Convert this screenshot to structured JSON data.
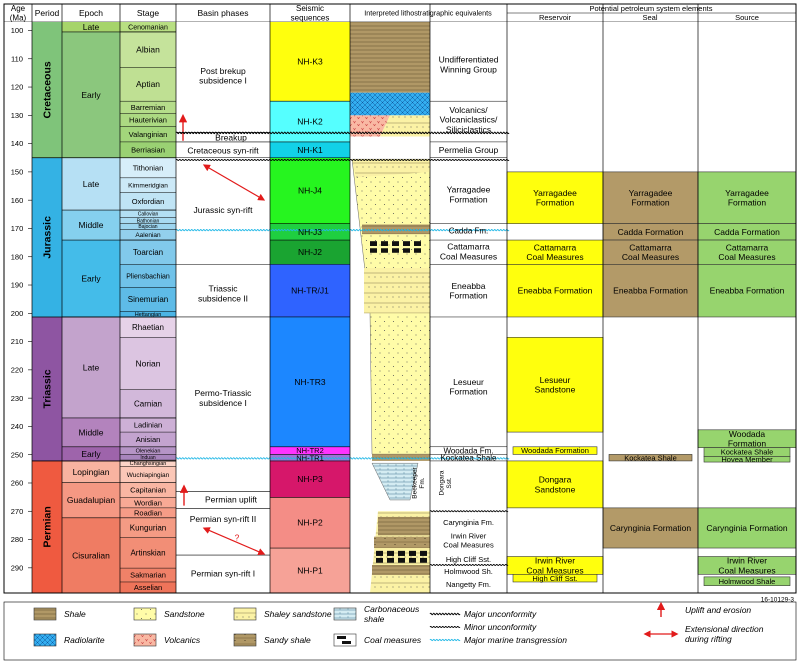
{
  "header": {
    "age": "Age\n(Ma)",
    "period": "Period",
    "epoch": "Epoch",
    "stage": "Stage",
    "basin": "Basin phases",
    "seismic": "Seismic\nsequences",
    "litho": "Interpreted lithostratigraphic equivalents",
    "pse": "Potential petroleum system elements",
    "reservoir": "Reservoir",
    "seal": "Seal",
    "source": "Source"
  },
  "age_axis": {
    "ticks": [
      100,
      110,
      120,
      130,
      140,
      150,
      160,
      170,
      180,
      190,
      200,
      210,
      220,
      230,
      240,
      250,
      260,
      270,
      280,
      290
    ]
  },
  "periods": [
    {
      "name": "Cretaceous",
      "top": 97,
      "base": 145,
      "color": "#7fc47a"
    },
    {
      "name": "Jurassic",
      "top": 145,
      "base": 201.3,
      "color": "#34b2e4"
    },
    {
      "name": "Triassic",
      "top": 201.3,
      "base": 252.2,
      "color": "#8e55a2"
    },
    {
      "name": "Permian",
      "top": 252.2,
      "base": 298.9,
      "color": "#ef5a40"
    }
  ],
  "epochs": [
    {
      "name": "Late",
      "top": 97,
      "base": 100.5,
      "color": "#a6d46a"
    },
    {
      "name": "Early",
      "top": 100.5,
      "base": 145,
      "color": "#8bc77d"
    },
    {
      "name": "Late",
      "top": 145,
      "base": 163.5,
      "color": "#b6e0f4"
    },
    {
      "name": "Middle",
      "top": 163.5,
      "base": 174.1,
      "color": "#85d0ee"
    },
    {
      "name": "Early",
      "top": 174.1,
      "base": 201.3,
      "color": "#44bce9"
    },
    {
      "name": "Late",
      "top": 201.3,
      "base": 237,
      "color": "#c3a3cc"
    },
    {
      "name": "Middle",
      "top": 237,
      "base": 247.2,
      "color": "#b383bd"
    },
    {
      "name": "Early",
      "top": 247.2,
      "base": 252.2,
      "color": "#9e64ab"
    },
    {
      "name": "Lopingian",
      "top": 252.2,
      "base": 259.9,
      "color": "#f8b3a0"
    },
    {
      "name": "Guadalupian",
      "top": 259.9,
      "base": 272.3,
      "color": "#f59883"
    },
    {
      "name": "Cisuralian",
      "top": 272.3,
      "base": 298.9,
      "color": "#ef7c63"
    }
  ],
  "stages": [
    {
      "name": "Cenomanian",
      "top": 97,
      "base": 100.5,
      "color": "#b8df82",
      "size": 7
    },
    {
      "name": "Albian",
      "top": 100.5,
      "base": 113,
      "color": "#c5e39b",
      "size": 8.5
    },
    {
      "name": "Aptian",
      "top": 113,
      "base": 125,
      "color": "#bfe093",
      "size": 8.5
    },
    {
      "name": "Barremian",
      "top": 125,
      "base": 129.4,
      "color": "#b5dd8a",
      "size": 7.5
    },
    {
      "name": "Hauterivian",
      "top": 129.4,
      "base": 133.9,
      "color": "#acd982",
      "size": 7.5
    },
    {
      "name": "Valanginian",
      "top": 133.9,
      "base": 139.4,
      "color": "#a3d57b",
      "size": 7.5
    },
    {
      "name": "Berriasian",
      "top": 139.4,
      "base": 145,
      "color": "#9ad173",
      "size": 7.5
    },
    {
      "name": "Tithonian",
      "top": 145,
      "base": 152.1,
      "color": "#d7eef9",
      "size": 7.5
    },
    {
      "name": "Kimmeridgian",
      "top": 152.1,
      "base": 157.3,
      "color": "#cce9f7",
      "size": 6.5
    },
    {
      "name": "Oxfordian",
      "top": 157.3,
      "base": 163.5,
      "color": "#c0e4f5",
      "size": 7.5
    },
    {
      "name": "Callovian",
      "top": 163.5,
      "base": 166.1,
      "color": "#b3dff3",
      "size": 5
    },
    {
      "name": "Bathonian",
      "top": 166.1,
      "base": 168.3,
      "color": "#a8daf1",
      "size": 5
    },
    {
      "name": "Bajocian",
      "top": 168.3,
      "base": 170.3,
      "color": "#9dd5ef",
      "size": 5
    },
    {
      "name": "Aalenian",
      "top": 170.3,
      "base": 174.1,
      "color": "#93d0ed",
      "size": 6.5
    },
    {
      "name": "Toarcian",
      "top": 174.1,
      "base": 182.7,
      "color": "#81c9eb",
      "size": 8
    },
    {
      "name": "Pliensbachian",
      "top": 182.7,
      "base": 190.8,
      "color": "#70c2e9",
      "size": 7
    },
    {
      "name": "Sinemurian",
      "top": 190.8,
      "base": 199.3,
      "color": "#5ebbe7",
      "size": 8
    },
    {
      "name": "Hettangian",
      "top": 199.3,
      "base": 201.3,
      "color": "#4cb4e5",
      "size": 5.5
    },
    {
      "name": "Rhaetian",
      "top": 201.3,
      "base": 208.5,
      "color": "#e6d2e8",
      "size": 8
    },
    {
      "name": "Norian",
      "top": 208.5,
      "base": 227,
      "color": "#dcc5e1",
      "size": 8.5
    },
    {
      "name": "Carnian",
      "top": 227,
      "base": 237,
      "color": "#d2b8da",
      "size": 8
    },
    {
      "name": "Ladinian",
      "top": 237,
      "base": 242,
      "color": "#cdb0d6",
      "size": 7.5
    },
    {
      "name": "Anisian",
      "top": 242,
      "base": 247.2,
      "color": "#c3a3cf",
      "size": 7.5
    },
    {
      "name": "Olenekian",
      "top": 247.2,
      "base": 249.9,
      "color": "#b594c6",
      "size": 5.5
    },
    {
      "name": "Induan",
      "top": 249.9,
      "base": 251.9,
      "color": "#a885bd",
      "size": 5
    },
    {
      "name": "Changhsingian",
      "top": 251.9,
      "base": 254.1,
      "color": "#fcd4c7",
      "size": 5.5
    },
    {
      "name": "Wuchiapingian",
      "top": 254.1,
      "base": 259.9,
      "color": "#fbc7b7",
      "size": 6.5
    },
    {
      "name": "Capitanian",
      "top": 259.9,
      "base": 265.1,
      "color": "#f9b6a3",
      "size": 7.5
    },
    {
      "name": "Wordian",
      "top": 265.1,
      "base": 268.8,
      "color": "#f8a995",
      "size": 7.5
    },
    {
      "name": "Roadian",
      "top": 268.8,
      "base": 272.3,
      "color": "#f69c87",
      "size": 7.5
    },
    {
      "name": "Kungurian",
      "top": 272.3,
      "base": 279.3,
      "color": "#f49b84",
      "size": 8
    },
    {
      "name": "Artinskian",
      "top": 279.3,
      "base": 290.1,
      "color": "#f28e76",
      "size": 8
    },
    {
      "name": "Sakmarian",
      "top": 290.1,
      "base": 295,
      "color": "#f08168",
      "size": 7.5
    },
    {
      "name": "Asselian",
      "top": 295,
      "base": 298.9,
      "color": "#ee745a",
      "size": 7.5
    }
  ],
  "basin_phases": [
    {
      "label": "Post brekup\nsubsidence I",
      "top": 97,
      "base": 136,
      "y": 116
    },
    {
      "label": "Breakup",
      "top": 136,
      "base": 139.4,
      "y": 137.9
    },
    {
      "label": "Cretaceous syn-rift",
      "top": 139.4,
      "base": 145,
      "y": 142.4
    },
    {
      "label": "Jurassic syn-rift",
      "top": 145,
      "base": 182.7,
      "y": 163.5
    },
    {
      "label": "Triassic\nsubsidence II",
      "top": 182.7,
      "base": 201.3,
      "y": 193
    },
    {
      "label": "Permo-Triassic\nsubsidence I",
      "top": 201.3,
      "base": 263,
      "y": 230
    },
    {
      "label": "Permian uplift",
      "top": 263,
      "base": 269,
      "y": 265.8
    },
    {
      "label": "Permian syn-rift II",
      "top": 269,
      "base": 285.5,
      "y": 272.8
    },
    {
      "label": "Permian syn-rift I",
      "top": 285.5,
      "base": 298.9,
      "y": 292
    }
  ],
  "basin_question": "?",
  "seismic": [
    {
      "name": "NH-K3",
      "top": 97,
      "base": 125,
      "color": "#ffff0d"
    },
    {
      "name": "NH-K2",
      "top": 125,
      "base": 139.4,
      "color": "#55ffff"
    },
    {
      "name": "NH-K1",
      "top": 139.4,
      "base": 145,
      "color": "#12d1e8"
    },
    {
      "name": "NH-J4",
      "top": 145,
      "base": 168.3,
      "color": "#26f51f"
    },
    {
      "name": "NH-J3",
      "top": 168.3,
      "base": 174.1,
      "color": "#1fcf40"
    },
    {
      "name": "NH-J2",
      "top": 174.1,
      "base": 182.7,
      "color": "#1aa431"
    },
    {
      "name": "NH-TR/J1",
      "top": 182.7,
      "base": 201.3,
      "color": "#2f63ff"
    },
    {
      "name": "NH-TR3",
      "top": 201.3,
      "base": 247.2,
      "color": "#1c87ff"
    },
    {
      "name": "NH-TR2",
      "top": 247.2,
      "base": 249.9,
      "color": "#ff33ff"
    },
    {
      "name": "NH-TR1",
      "top": 249.9,
      "base": 252.2,
      "color": "#9c74d9"
    },
    {
      "name": "NH-P3",
      "top": 252.2,
      "base": 265.1,
      "color": "#d6176a"
    },
    {
      "name": "NH-P2",
      "top": 265.1,
      "base": 283,
      "color": "#f48d86"
    },
    {
      "name": "NH-P1",
      "top": 283,
      "base": 298.9,
      "color": "#f6a297"
    }
  ],
  "litho_names": [
    {
      "label": "Undifferentiated\nWinning Group",
      "y": 112
    },
    {
      "label": "Volcanics/\nVolcaniclastics/\nSiliciclastics",
      "y": 131.5
    },
    {
      "label": "Permelia Group",
      "y": 142.3
    },
    {
      "label": "Yarragadee\nFormation",
      "y": 158
    },
    {
      "label": "Cadda Fm.",
      "y": 170.8
    },
    {
      "label": "Cattamarra\nCoal Measures",
      "y": 178.2
    },
    {
      "label": "Eneabba\nFormation",
      "y": 192
    },
    {
      "label": "Lesueur\nFormation",
      "y": 226
    },
    {
      "label": "Woodada Fm.",
      "y": 248.6
    },
    {
      "label": "Kockatea Shale",
      "y": 251
    },
    {
      "label": "Beekeeper\nFm.",
      "y": 260
    },
    {
      "label": "Dongara\nSst.",
      "y": 260
    },
    {
      "label": "Carynginia Fm.",
      "y": 274
    },
    {
      "label": "Irwin River\nCoal Measures",
      "y": 280.3
    },
    {
      "label": "High Cliff Sst.",
      "y": 287
    },
    {
      "label": "Holmwood Sh.",
      "y": 291.2
    },
    {
      "label": "Nangetty Fm.",
      "y": 295.8
    }
  ],
  "reservoir": [
    {
      "label": "Yarragadee\nFormation",
      "top": 150,
      "base": 168.3,
      "color": "#ffff0d"
    },
    {
      "label": "Cattamarra\nCoal Measures",
      "top": 174.1,
      "base": 182.7,
      "color": "#ffff0d"
    },
    {
      "label": "Eneabba Formation",
      "top": 182.7,
      "base": 201.3,
      "color": "#ffff0d"
    },
    {
      "label": "Lesueur\nSandstone",
      "top": 208.5,
      "base": 242,
      "color": "#ffff0d"
    },
    {
      "label": "Woodada Formation",
      "top": 247.2,
      "base": 249.9,
      "color": "#ffff0d"
    },
    {
      "label": "Dongara\nSandstone",
      "top": 252.2,
      "base": 268.8,
      "color": "#ffff0d"
    },
    {
      "label": "Irwin River\nCoal Measures",
      "top": 286,
      "base": 292.3,
      "color": "#ffff0d"
    },
    {
      "label": "High Cliff Sst.",
      "top": 292.3,
      "base": 295,
      "color": "#ffff0d"
    }
  ],
  "seal": [
    {
      "label": "Yarragadee\nFormation",
      "top": 150,
      "base": 168.3,
      "color": "#b39a68"
    },
    {
      "label": "Cadda Formation",
      "top": 168.3,
      "base": 174.1,
      "color": "#b39a68"
    },
    {
      "label": "Cattamarra\nCoal Measures",
      "top": 174.1,
      "base": 182.7,
      "color": "#b39a68"
    },
    {
      "label": "Eneabba Formation",
      "top": 182.7,
      "base": 201.3,
      "color": "#b39a68"
    },
    {
      "label": "Kockatea Shale",
      "top": 249.9,
      "base": 252.2,
      "color": "#b39a68"
    },
    {
      "label": "Carynginia Formation",
      "top": 268.8,
      "base": 283,
      "color": "#b39a68"
    }
  ],
  "source": [
    {
      "label": "Yarragadee\nFormation",
      "top": 150,
      "base": 168.3,
      "color": "#97d46e"
    },
    {
      "label": "Cadda Formation",
      "top": 168.3,
      "base": 174.1,
      "color": "#97d46e"
    },
    {
      "label": "Cattamarra\nCoal Measures",
      "top": 174.1,
      "base": 182.7,
      "color": "#97d46e"
    },
    {
      "label": "Eneabba Formation",
      "top": 182.7,
      "base": 201.3,
      "color": "#97d46e"
    },
    {
      "label": "Woodada\nFormation",
      "top": 241.2,
      "base": 247.5,
      "color": "#97d46e"
    },
    {
      "label": "Kockatea Shale",
      "top": 247.5,
      "base": 250.6,
      "color": "#97d46e"
    },
    {
      "label": "Hovea Member",
      "top": 250.6,
      "base": 252.6,
      "color": "#97d46e"
    },
    {
      "label": "Carynginia Formation",
      "top": 268.8,
      "base": 283,
      "color": "#97d46e"
    },
    {
      "label": "Irwin River\nCoal Measures",
      "top": 286,
      "base": 292.3,
      "color": "#97d46e"
    },
    {
      "label": "Holmwood Shale",
      "top": 293.2,
      "base": 296.3,
      "color": "#97d46e"
    }
  ],
  "figure_id": "16-10129-3",
  "legend": [
    {
      "label": "Shale",
      "icon": "shale"
    },
    {
      "label": "Radiolarite",
      "icon": "radiolarite"
    },
    {
      "label": "Sandstone",
      "icon": "sandstone"
    },
    {
      "label": "Volcanics",
      "icon": "volcanics"
    },
    {
      "label": "Shaley sandstone",
      "icon": "shaley-sandstone"
    },
    {
      "label": "Sandy shale",
      "icon": "sandy-shale"
    },
    {
      "label": "Carbonaceous\nshale",
      "icon": "carbonaceous-shale"
    },
    {
      "label": "Coal measures",
      "icon": "coal-measures"
    },
    {
      "label": "Major unconformity",
      "icon": "major-unconformity"
    },
    {
      "label": "Minor unconformity",
      "icon": "minor-unconformity"
    },
    {
      "label": "Major marine transgression",
      "icon": "marine-transgression"
    },
    {
      "label": "Uplift and erosion",
      "icon": "uplift-arrow"
    },
    {
      "label": "Extensional direction\nduring rifting",
      "icon": "extension-arrow"
    }
  ]
}
